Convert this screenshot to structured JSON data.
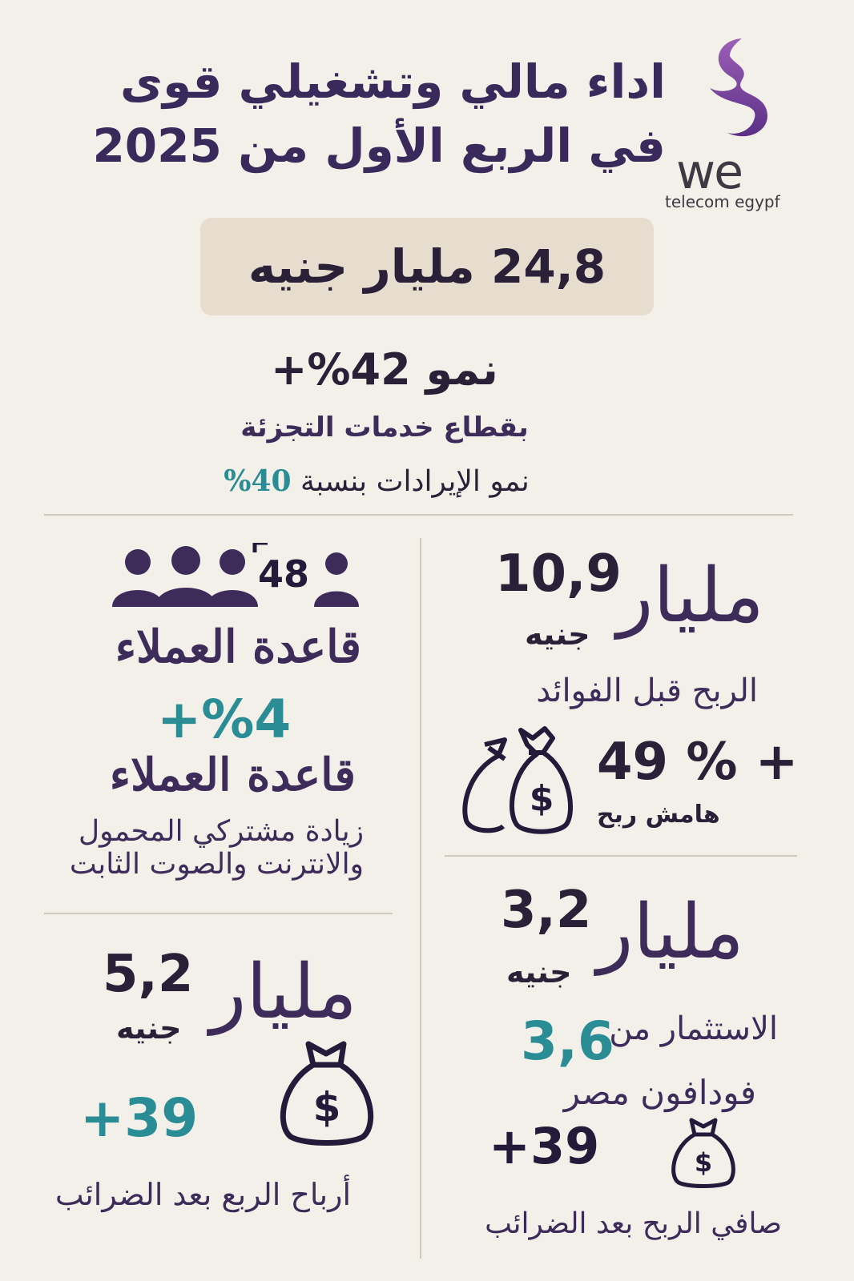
{
  "header": {
    "title_line1": "اداء مالي وتشغيلي قوى",
    "title_line2": "في الربع الأول من 2025",
    "logo_word": "we",
    "logo_sub": "telecom egypf"
  },
  "revenue": {
    "value": "24,8 مليار  جنيه"
  },
  "growth": {
    "headline": "نمو 42%+",
    "segment": "بقطاع خدمات التجزئة",
    "revenue_growth_text": "نمو الإيرادات بنسبة",
    "revenue_growth_value": "40%"
  },
  "ebitda": {
    "number": "10,9",
    "milyar": "مليار",
    "junayh": "جنيه",
    "label": "الربح قبل الفوائد",
    "margin_value": "49 % +",
    "margin_label": "هامش ربح"
  },
  "customers": {
    "number": "48",
    "title": "قاعدة العملاء",
    "growth": "+%4",
    "title2": "قاعدة العملاء",
    "desc_line1": "زيادة مشتركي المحمول",
    "desc_line2": "والانترنت والصوت الثابت"
  },
  "vodafone": {
    "number": "3,2",
    "milyar": "مليار",
    "junayh": "جنيه",
    "label_a": "الاستثمار من",
    "value": "3,6",
    "label_b": "فودافون مصر",
    "growth": "+39",
    "net_label": "صافي الربح بعد الضرائب"
  },
  "net_profit": {
    "number": "5,2",
    "milyar": "مليار",
    "junayh": "جنيه",
    "growth": "+39",
    "label": "أرباح الربع بعد الضرائب"
  },
  "icons": {
    "logo": "we-logo-icon",
    "people": "people-group-icon",
    "money_bags": "money-bags-icon",
    "money_bag": "money-bag-icon"
  },
  "colors": {
    "background": "#f3efe9",
    "purple": "#3d2c5a",
    "teal": "#2a8c94",
    "box": "#e6ddce"
  }
}
